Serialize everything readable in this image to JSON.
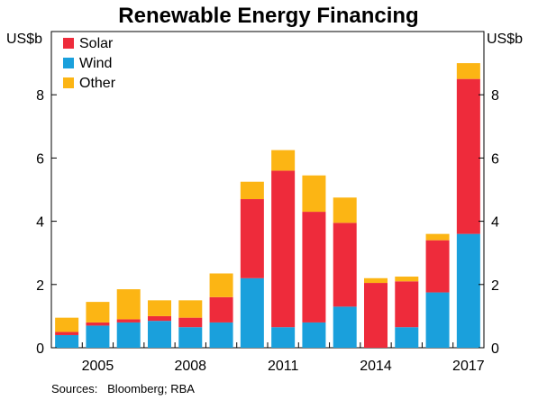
{
  "chart_data": {
    "type": "bar",
    "stacked": true,
    "title": "Renewable Energy Financing",
    "ylabel_left": "US$b",
    "ylabel_right": "US$b",
    "ylim": [
      0,
      10
    ],
    "yticks": [
      0,
      2,
      4,
      6,
      8
    ],
    "categories": [
      "2004",
      "2005",
      "2006",
      "2007",
      "2008",
      "2009",
      "2010",
      "2011",
      "2012",
      "2013",
      "2014",
      "2015",
      "2016",
      "2017"
    ],
    "xtick_labels": [
      "2005",
      "2008",
      "2011",
      "2014",
      "2017"
    ],
    "series": [
      {
        "name": "Wind",
        "color": "#1aa0dc",
        "values": [
          0.4,
          0.7,
          0.8,
          0.85,
          0.65,
          0.8,
          2.2,
          0.65,
          0.8,
          1.3,
          0.0,
          0.65,
          1.75,
          3.6
        ]
      },
      {
        "name": "Solar",
        "color": "#ee2b3b",
        "values": [
          0.1,
          0.1,
          0.1,
          0.15,
          0.3,
          0.8,
          2.5,
          4.95,
          3.5,
          2.65,
          2.05,
          1.45,
          1.65,
          4.9
        ]
      },
      {
        "name": "Other",
        "color": "#fcb514",
        "values": [
          0.45,
          0.65,
          0.95,
          0.5,
          0.55,
          0.75,
          0.55,
          0.65,
          1.15,
          0.8,
          0.15,
          0.15,
          0.2,
          0.5
        ]
      }
    ],
    "legend": {
      "position": "top-left",
      "entries": [
        {
          "label": "Solar",
          "color": "#ee2b3b"
        },
        {
          "label": "Wind",
          "color": "#1aa0dc"
        },
        {
          "label": "Other",
          "color": "#fcb514"
        }
      ]
    },
    "source": "Sources:   Bloomberg; RBA",
    "grid": false
  }
}
